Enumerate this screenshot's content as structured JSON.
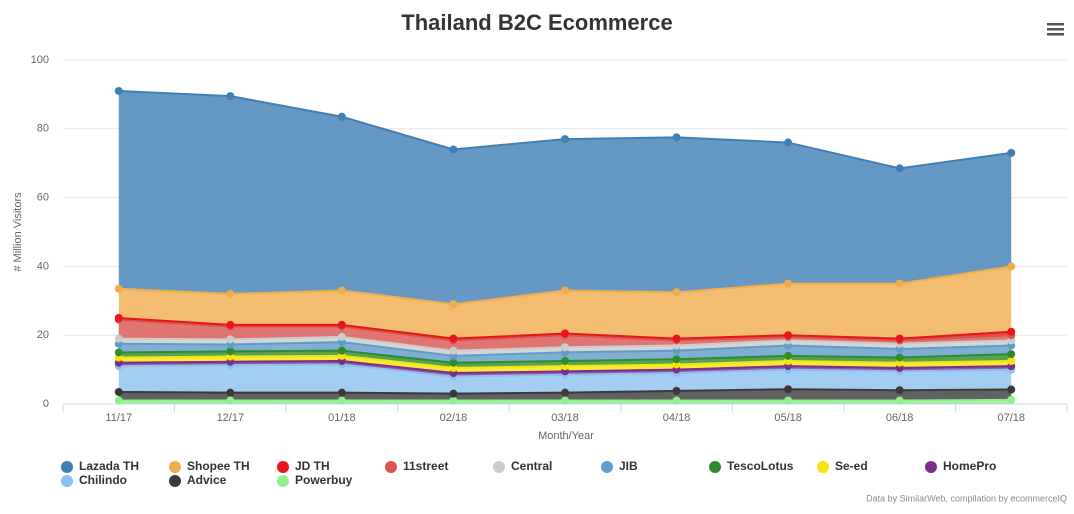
{
  "chart_data": {
    "type": "stacked-area",
    "title": "Thailand B2C Ecommerce",
    "x_label": "Month/Year",
    "y_label": "# Million Visitors",
    "credits": "Data by SimilarWeb, compilation by ecommerceIQ",
    "categories": [
      "11/17",
      "12/17",
      "01/18",
      "02/18",
      "03/18",
      "04/18",
      "05/18",
      "06/18",
      "07/18"
    ],
    "ylim": [
      0,
      100
    ],
    "yticks": [
      0,
      20,
      40,
      60,
      80,
      100
    ],
    "grid": true,
    "legend": "bottom",
    "series": [
      {
        "name": "Lazada TH",
        "color": "#3f7fb5",
        "values": [
          57.5,
          57.5,
          50.5,
          45,
          44,
          45,
          41,
          33.5,
          33
        ]
      },
      {
        "name": "Shopee TH",
        "color": "#f0ad4e",
        "values": [
          8.5,
          9,
          10,
          10,
          12.5,
          13.5,
          15,
          16,
          19
        ]
      },
      {
        "name": "JD TH",
        "color": "#e8161b",
        "values": [
          0.5,
          0.5,
          0.5,
          0.5,
          0.5,
          0.5,
          0.5,
          0.5,
          1
        ]
      },
      {
        "name": "11street",
        "color": "#d9534f",
        "values": [
          5.5,
          3.7,
          3,
          3,
          3.5,
          1.5,
          1,
          1,
          1.5
        ]
      },
      {
        "name": "Central",
        "color": "#cccccc",
        "values": [
          1.5,
          1.5,
          1.5,
          1.5,
          1.5,
          1.5,
          1.5,
          1.5,
          1.5
        ]
      },
      {
        "name": "JIB",
        "color": "#5f9cc8",
        "values": [
          2.5,
          2,
          2.5,
          2,
          2.5,
          2.5,
          3,
          2.5,
          2.5
        ]
      },
      {
        "name": "TescoLotus",
        "color": "#2e8b2e",
        "values": [
          1.5,
          1.5,
          1.5,
          1.5,
          1.5,
          1.5,
          1.5,
          1.5,
          2
        ]
      },
      {
        "name": "Se-ed",
        "color": "#f5e50a",
        "values": [
          1.5,
          1.5,
          1.5,
          1.5,
          1.5,
          1.5,
          1.5,
          1.5,
          1.5
        ]
      },
      {
        "name": "HomePro",
        "color": "#7b2d8e",
        "values": [
          1,
          1,
          1,
          1,
          1,
          1,
          1,
          1,
          1
        ]
      },
      {
        "name": "Chilindo",
        "color": "#8cc0ee",
        "values": [
          7.5,
          8,
          8.2,
          5,
          5.2,
          5.2,
          5.7,
          5.5,
          5.8
        ]
      },
      {
        "name": "Advice",
        "color": "#3a3a3a",
        "values": [
          2.5,
          2.3,
          2.3,
          2,
          2.3,
          2.8,
          3.3,
          3,
          3
        ]
      },
      {
        "name": "Powerbuy",
        "color": "#90ee90",
        "values": [
          1,
          1,
          1,
          1,
          1,
          1,
          1,
          1,
          1.2
        ]
      }
    ]
  }
}
